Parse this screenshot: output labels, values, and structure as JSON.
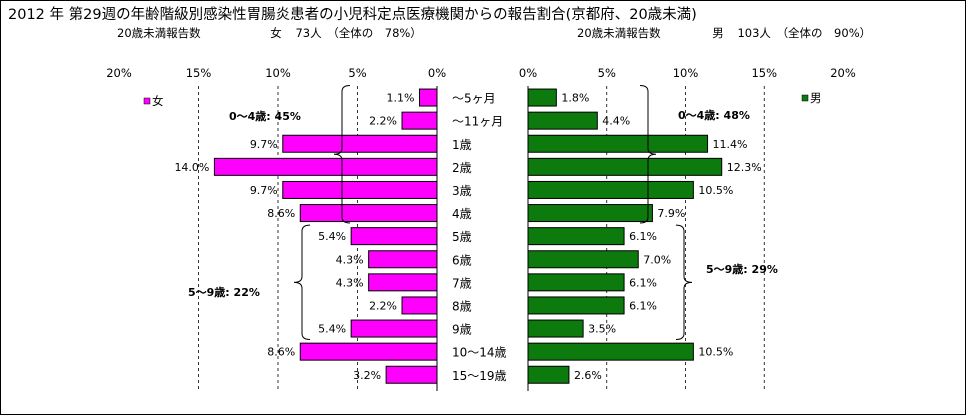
{
  "title": "2012 年 第29週の年齢階級別感染性胃腸炎患者の小児科定点医療機関からの報告割合(京都府、20歳未満)",
  "female_header": {
    "label": "20歳未満報告数",
    "sex": "女",
    "count": "73人",
    "share": "（全体の　78%）"
  },
  "male_header": {
    "label": "20歳未満報告数",
    "sex": "男",
    "count": "103人",
    "share": "（全体の　90%）"
  },
  "colors": {
    "female": "#ff00ff",
    "male": "#0c7a0c",
    "bar_outline": "#000000",
    "gridline": "#000000"
  },
  "chart_data": [
    {
      "type": "bar",
      "orientation": "horizontal",
      "direction": "right-to-left",
      "legend": "女",
      "legend_position": "top-left",
      "categories": [
        "～5ヶ月",
        "～11ヶ月",
        "1歳",
        "2歳",
        "3歳",
        "4歳",
        "5歳",
        "6歳",
        "7歳",
        "8歳",
        "9歳",
        "10～14歳",
        "15～19歳"
      ],
      "series": [
        {
          "name": "女",
          "values": [
            1.1,
            2.2,
            9.7,
            14.0,
            9.7,
            8.6,
            5.4,
            4.3,
            4.3,
            2.2,
            5.4,
            8.6,
            3.2
          ]
        }
      ],
      "value_labels": [
        "1.1%",
        "2.2%",
        "9.7%",
        "14.0%",
        "9.7%",
        "8.6%",
        "5.4%",
        "4.3%",
        "4.3%",
        "2.2%",
        "5.4%",
        "8.6%",
        "3.2%"
      ],
      "xlim": [
        0,
        20
      ],
      "x_ticks": [
        "0%",
        "5%",
        "10%",
        "15%",
        "20%"
      ],
      "grid": "dashed vertical",
      "annotations": [
        {
          "text": "0～4歳: 45%",
          "from_index": 0,
          "to_index": 5
        },
        {
          "text": "5～9歳: 22%",
          "from_index": 6,
          "to_index": 10
        }
      ]
    },
    {
      "type": "bar",
      "orientation": "horizontal",
      "direction": "left-to-right",
      "legend": "男",
      "legend_position": "top-right",
      "categories": [
        "～5ヶ月",
        "～11ヶ月",
        "1歳",
        "2歳",
        "3歳",
        "4歳",
        "5歳",
        "6歳",
        "7歳",
        "8歳",
        "9歳",
        "10～14歳",
        "15～19歳"
      ],
      "series": [
        {
          "name": "男",
          "values": [
            1.8,
            4.4,
            11.4,
            12.3,
            10.5,
            7.9,
            6.1,
            7.0,
            6.1,
            6.1,
            3.5,
            10.5,
            2.6
          ]
        }
      ],
      "value_labels": [
        "1.8%",
        "4.4%",
        "11.4%",
        "12.3%",
        "10.5%",
        "7.9%",
        "6.1%",
        "7.0%",
        "6.1%",
        "6.1%",
        "3.5%",
        "10.5%",
        "2.6%"
      ],
      "xlim": [
        0,
        20
      ],
      "x_ticks": [
        "0%",
        "5%",
        "10%",
        "15%",
        "20%"
      ],
      "grid": "dashed vertical",
      "annotations": [
        {
          "text": "0～4歳: 48%",
          "from_index": 0,
          "to_index": 5
        },
        {
          "text": "5～9歳: 29%",
          "from_index": 6,
          "to_index": 10
        }
      ]
    }
  ]
}
